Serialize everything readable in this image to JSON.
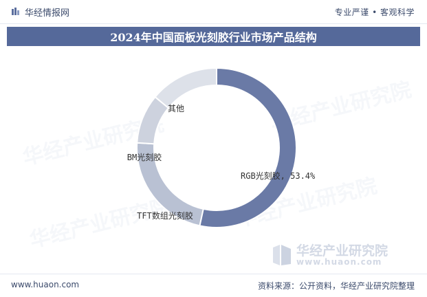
{
  "header": {
    "brand": "华经情报网",
    "tagline": "专业严谨 • 客观科学"
  },
  "title": "2024年中国面板光刻胶行业市场产品结构",
  "watermark": {
    "text": "华经产业研究院",
    "corner_name": "华经产业研究院",
    "corner_url": "www.huaon.com"
  },
  "footer": {
    "site": "www.huaon.com",
    "source": "资料来源：公开资料，华经产业研究院整理"
  },
  "colors": {
    "header_band": "#55699a",
    "slice_main": "#6a7aa6",
    "slice_light": "#b9c1d3",
    "slice_lighter": "#cdd2de",
    "slice_lightest": "#dde1e9"
  },
  "chart_data": {
    "type": "pie",
    "hole": true,
    "title": "2024年中国面板光刻胶行业市场产品结构",
    "legend": "none",
    "slices": [
      {
        "name": "RGB光刻胶",
        "label": "RGB光刻胶, 53.4%",
        "value": 53.4,
        "color": "#6a7aa6"
      },
      {
        "name": "TFT数组光刻胶",
        "label": "TFT数组光刻胶",
        "value": 22.6,
        "color": "#b9c1d3"
      },
      {
        "name": "BM光刻胶",
        "label": "BM光刻胶",
        "value": 10.0,
        "color": "#cdd2de"
      },
      {
        "name": "其他",
        "label": "其他",
        "value": 14.0,
        "color": "#dde1e9"
      }
    ]
  }
}
